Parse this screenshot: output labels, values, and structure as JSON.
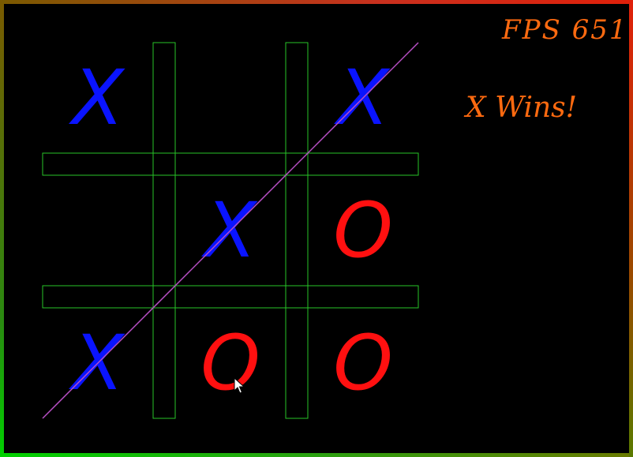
{
  "hud": {
    "fps_label": "FPS 651",
    "status_label": "X Wins!"
  },
  "board": {
    "cells": [
      [
        "X",
        "",
        "X"
      ],
      [
        "",
        "X",
        "O"
      ],
      [
        "X",
        "O",
        "O"
      ]
    ],
    "winning_line": "anti-diagonal"
  },
  "colors": {
    "background": "#000000",
    "grid": "#27c427",
    "x_mark": "#0a14ff",
    "o_mark": "#ff1010",
    "win_line": "#b84fc4",
    "hud_text": "#ff6a10"
  },
  "icons": {
    "cursor": "arrow-cursor-icon"
  }
}
